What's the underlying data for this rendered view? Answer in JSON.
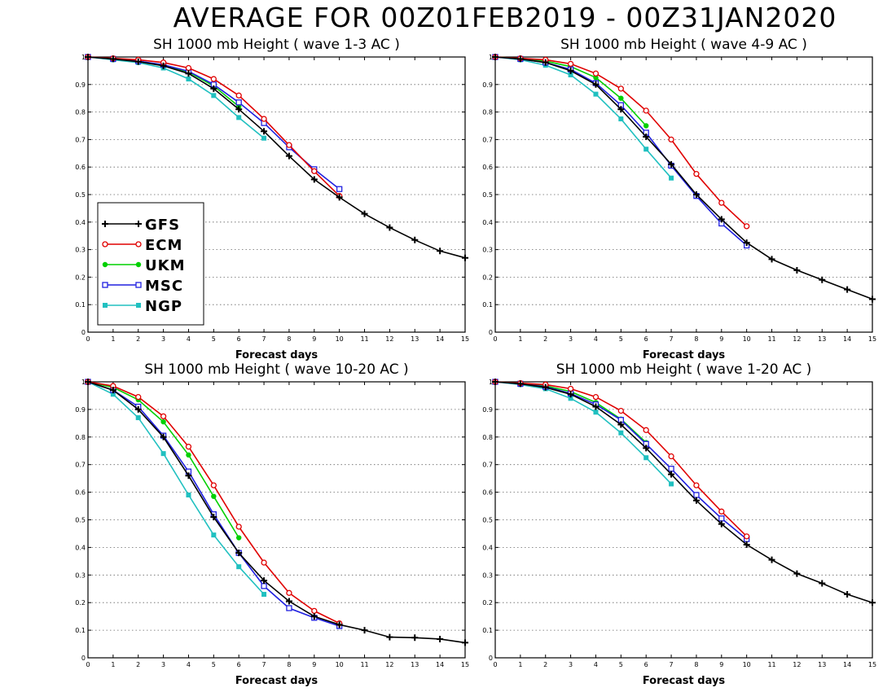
{
  "page_title": "AVERAGE FOR 00Z01FEB2019 - 00Z31JAN2020",
  "colors": {
    "GFS": "#000000",
    "ECM": "#e00000",
    "UKM": "#00d000",
    "MSC": "#2020e0",
    "NGP": "#20c0c0"
  },
  "legend": [
    {
      "name": "GFS",
      "marker": "plus"
    },
    {
      "name": "ECM",
      "marker": "open-circle"
    },
    {
      "name": "UKM",
      "marker": "filled-circle"
    },
    {
      "name": "MSC",
      "marker": "open-square"
    },
    {
      "name": "NGP",
      "marker": "filled-square"
    }
  ],
  "chart_data": [
    {
      "type": "line",
      "title": "SH 1000 mb Height ( wave 1-3 AC )",
      "xlabel": "Forecast days",
      "ylabel": "",
      "xlim": [
        0,
        15
      ],
      "ylim": [
        0,
        1
      ],
      "xticks": [
        "0",
        "1",
        "2",
        "3",
        "4",
        "5",
        "6",
        "7",
        "8",
        "9",
        "10",
        "11",
        "12",
        "13",
        "14",
        "15"
      ],
      "yticks": [
        "0",
        "0.1",
        "0.2",
        "0.3",
        "0.4",
        "0.5",
        "0.6",
        "0.7",
        "0.8",
        "0.9",
        "1"
      ],
      "grid": "horizontal-dotted",
      "legend_position": "bottom-left",
      "series": [
        {
          "name": "GFS",
          "x": [
            0,
            1,
            2,
            3,
            4,
            5,
            6,
            7,
            8,
            9,
            10,
            11,
            12,
            13,
            14,
            15
          ],
          "values": [
            1.0,
            0.993,
            0.983,
            0.968,
            0.94,
            0.885,
            0.81,
            0.73,
            0.64,
            0.555,
            0.49,
            0.43,
            0.38,
            0.335,
            0.295,
            0.27
          ]
        },
        {
          "name": "ECM",
          "x": [
            0,
            1,
            2,
            3,
            4,
            5,
            6,
            7,
            8,
            9,
            10
          ],
          "values": [
            1.0,
            0.995,
            0.99,
            0.98,
            0.96,
            0.92,
            0.86,
            0.775,
            0.68,
            0.585,
            0.495
          ]
        },
        {
          "name": "UKM",
          "x": [
            0,
            1,
            2,
            3,
            4,
            5,
            6
          ],
          "values": [
            1.0,
            0.993,
            0.985,
            0.97,
            0.945,
            0.895,
            0.82
          ]
        },
        {
          "name": "MSC",
          "x": [
            0,
            1,
            2,
            3,
            4,
            5,
            6,
            7,
            8,
            9,
            10
          ],
          "values": [
            1.0,
            0.993,
            0.985,
            0.972,
            0.948,
            0.9,
            0.835,
            0.76,
            0.672,
            0.592,
            0.52
          ]
        },
        {
          "name": "NGP",
          "x": [
            0,
            1,
            2,
            3,
            4,
            5,
            6,
            7
          ],
          "values": [
            1.0,
            0.99,
            0.98,
            0.96,
            0.92,
            0.86,
            0.78,
            0.705
          ]
        }
      ]
    },
    {
      "type": "line",
      "title": "SH 1000 mb Height ( wave 4-9 AC )",
      "xlabel": "Forecast days",
      "ylabel": "",
      "xlim": [
        0,
        15
      ],
      "ylim": [
        0,
        1
      ],
      "xticks": [
        "0",
        "1",
        "2",
        "3",
        "4",
        "5",
        "6",
        "7",
        "8",
        "9",
        "10",
        "11",
        "12",
        "13",
        "14",
        "15"
      ],
      "yticks": [
        "0",
        "0.1",
        "0.2",
        "0.3",
        "0.4",
        "0.5",
        "0.6",
        "0.7",
        "0.8",
        "0.9",
        "1"
      ],
      "grid": "horizontal-dotted",
      "series": [
        {
          "name": "GFS",
          "x": [
            0,
            1,
            2,
            3,
            4,
            5,
            6,
            7,
            8,
            9,
            10,
            11,
            12,
            13,
            14,
            15
          ],
          "values": [
            1.0,
            0.993,
            0.98,
            0.95,
            0.9,
            0.81,
            0.71,
            0.61,
            0.5,
            0.41,
            0.325,
            0.265,
            0.225,
            0.19,
            0.155,
            0.12
          ]
        },
        {
          "name": "ECM",
          "x": [
            0,
            1,
            2,
            3,
            4,
            5,
            6,
            7,
            8,
            9,
            10
          ],
          "values": [
            1.0,
            0.995,
            0.99,
            0.975,
            0.94,
            0.885,
            0.805,
            0.7,
            0.575,
            0.47,
            0.385
          ]
        },
        {
          "name": "UKM",
          "x": [
            0,
            1,
            2,
            3,
            4,
            5,
            6
          ],
          "values": [
            1.0,
            0.995,
            0.985,
            0.965,
            0.925,
            0.85,
            0.75
          ]
        },
        {
          "name": "MSC",
          "x": [
            0,
            1,
            2,
            3,
            4,
            5,
            6,
            7,
            8,
            9,
            10
          ],
          "values": [
            1.0,
            0.993,
            0.98,
            0.955,
            0.905,
            0.825,
            0.725,
            0.605,
            0.495,
            0.395,
            0.315
          ]
        },
        {
          "name": "NGP",
          "x": [
            0,
            1,
            2,
            3,
            4,
            5,
            6,
            7
          ],
          "values": [
            1.0,
            0.99,
            0.97,
            0.935,
            0.865,
            0.775,
            0.665,
            0.56
          ]
        }
      ]
    },
    {
      "type": "line",
      "title": "SH 1000 mb Height ( wave 10-20 AC )",
      "xlabel": "Forecast days",
      "ylabel": "",
      "xlim": [
        0,
        15
      ],
      "ylim": [
        0,
        1
      ],
      "xticks": [
        "0",
        "1",
        "2",
        "3",
        "4",
        "5",
        "6",
        "7",
        "8",
        "9",
        "10",
        "11",
        "12",
        "13",
        "14",
        "15"
      ],
      "yticks": [
        "0",
        "0.1",
        "0.2",
        "0.3",
        "0.4",
        "0.5",
        "0.6",
        "0.7",
        "0.8",
        "0.9",
        "1"
      ],
      "grid": "horizontal-dotted",
      "series": [
        {
          "name": "GFS",
          "x": [
            0,
            1,
            2,
            3,
            4,
            5,
            6,
            7,
            8,
            9,
            10,
            11,
            12,
            13,
            14,
            15
          ],
          "values": [
            1.0,
            0.97,
            0.9,
            0.8,
            0.66,
            0.51,
            0.38,
            0.28,
            0.205,
            0.15,
            0.12,
            0.1,
            0.075,
            0.073,
            0.068,
            0.055
          ]
        },
        {
          "name": "ECM",
          "x": [
            0,
            1,
            2,
            3,
            4,
            5,
            6,
            7,
            8,
            9,
            10
          ],
          "values": [
            1.0,
            0.985,
            0.945,
            0.875,
            0.765,
            0.625,
            0.475,
            0.345,
            0.235,
            0.17,
            0.125
          ]
        },
        {
          "name": "UKM",
          "x": [
            0,
            1,
            2,
            3,
            4,
            5,
            6
          ],
          "values": [
            1.0,
            0.98,
            0.935,
            0.855,
            0.735,
            0.585,
            0.435
          ]
        },
        {
          "name": "MSC",
          "x": [
            0,
            1,
            2,
            3,
            4,
            5,
            6,
            7,
            8,
            9,
            10
          ],
          "values": [
            1.0,
            0.97,
            0.91,
            0.805,
            0.675,
            0.52,
            0.38,
            0.26,
            0.18,
            0.145,
            0.115
          ]
        },
        {
          "name": "NGP",
          "x": [
            0,
            1,
            2,
            3,
            4,
            5,
            6,
            7
          ],
          "values": [
            1.0,
            0.955,
            0.87,
            0.74,
            0.59,
            0.445,
            0.33,
            0.23
          ]
        }
      ]
    },
    {
      "type": "line",
      "title": "SH 1000 mb Height ( wave 1-20 AC )",
      "xlabel": "Forecast days",
      "ylabel": "",
      "xlim": [
        0,
        15
      ],
      "ylim": [
        0,
        1
      ],
      "xticks": [
        "0",
        "1",
        "2",
        "3",
        "4",
        "5",
        "6",
        "7",
        "8",
        "9",
        "10",
        "11",
        "12",
        "13",
        "14",
        "15"
      ],
      "yticks": [
        "0",
        "0.1",
        "0.2",
        "0.3",
        "0.4",
        "0.5",
        "0.6",
        "0.7",
        "0.8",
        "0.9",
        "1"
      ],
      "grid": "horizontal-dotted",
      "series": [
        {
          "name": "GFS",
          "x": [
            0,
            1,
            2,
            3,
            4,
            5,
            6,
            7,
            8,
            9,
            10,
            11,
            12,
            13,
            14,
            15
          ],
          "values": [
            1.0,
            0.993,
            0.98,
            0.955,
            0.91,
            0.845,
            0.76,
            0.665,
            0.57,
            0.485,
            0.41,
            0.355,
            0.305,
            0.27,
            0.23,
            0.2
          ]
        },
        {
          "name": "ECM",
          "x": [
            0,
            1,
            2,
            3,
            4,
            5,
            6,
            7,
            8,
            9,
            10
          ],
          "values": [
            1.0,
            0.995,
            0.99,
            0.975,
            0.945,
            0.895,
            0.825,
            0.73,
            0.625,
            0.53,
            0.44
          ]
        },
        {
          "name": "UKM",
          "x": [
            0,
            1,
            2,
            3,
            4,
            5,
            6
          ],
          "values": [
            1.0,
            0.994,
            0.985,
            0.965,
            0.925,
            0.865,
            0.78
          ]
        },
        {
          "name": "MSC",
          "x": [
            0,
            1,
            2,
            3,
            4,
            5,
            6,
            7,
            8,
            9,
            10
          ],
          "values": [
            1.0,
            0.993,
            0.982,
            0.958,
            0.918,
            0.862,
            0.775,
            0.685,
            0.59,
            0.505,
            0.43
          ]
        },
        {
          "name": "NGP",
          "x": [
            0,
            1,
            2,
            3,
            4,
            5,
            6,
            7
          ],
          "values": [
            1.0,
            0.99,
            0.975,
            0.94,
            0.89,
            0.815,
            0.725,
            0.63
          ]
        }
      ]
    }
  ]
}
